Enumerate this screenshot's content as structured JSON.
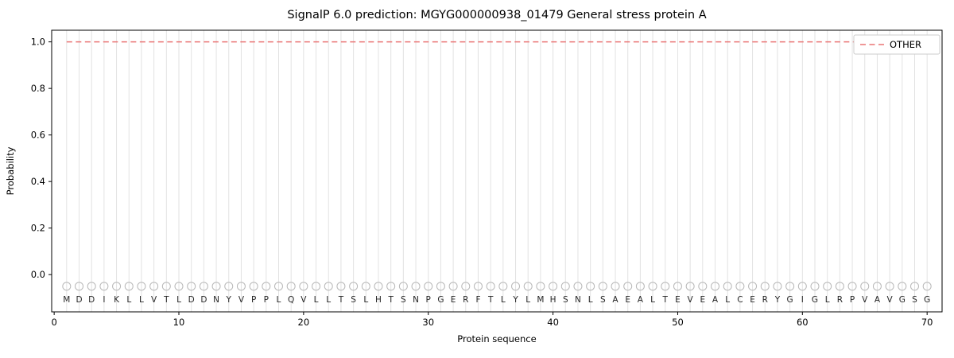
{
  "title": "SignalP 6.0 prediction: MGYG000000938_01479 General stress protein A",
  "chart_data": {
    "type": "line",
    "title": "SignalP 6.0 prediction: MGYG000000938_01479 General stress protein A",
    "xlabel": "Protein sequence",
    "ylabel": "Probability",
    "xlim": [
      -0.2,
      71.2
    ],
    "ylim": [
      -0.16,
      1.05
    ],
    "x_ticks": [
      0,
      10,
      20,
      30,
      40,
      50,
      60,
      70
    ],
    "y_ticks": [
      0.0,
      0.2,
      0.4,
      0.6,
      0.8,
      1.0
    ],
    "grid": "vertical-per-residue",
    "grid_color": "#e2e2e2",
    "legend_position": "upper right",
    "series": [
      {
        "name": "OTHER",
        "style": "dashed",
        "color": "#ea7575",
        "x": [
          1,
          2,
          3,
          4,
          5,
          6,
          7,
          8,
          9,
          10,
          11,
          12,
          13,
          14,
          15,
          16,
          17,
          18,
          19,
          20,
          21,
          22,
          23,
          24,
          25,
          26,
          27,
          28,
          29,
          30,
          31,
          32,
          33,
          34,
          35,
          36,
          37,
          38,
          39,
          40,
          41,
          42,
          43,
          44,
          45,
          46,
          47,
          48,
          49,
          50,
          51,
          52,
          53,
          54,
          55,
          56,
          57,
          58,
          59,
          60,
          61,
          62,
          63,
          64,
          65,
          66,
          67,
          68,
          69,
          70
        ],
        "values": [
          1.0,
          1.0,
          1.0,
          1.0,
          1.0,
          1.0,
          1.0,
          1.0,
          1.0,
          1.0,
          1.0,
          1.0,
          1.0,
          1.0,
          1.0,
          1.0,
          1.0,
          1.0,
          1.0,
          1.0,
          1.0,
          1.0,
          1.0,
          1.0,
          1.0,
          1.0,
          1.0,
          1.0,
          1.0,
          1.0,
          1.0,
          1.0,
          1.0,
          1.0,
          1.0,
          1.0,
          1.0,
          1.0,
          1.0,
          1.0,
          1.0,
          1.0,
          1.0,
          1.0,
          1.0,
          1.0,
          1.0,
          1.0,
          1.0,
          1.0,
          1.0,
          1.0,
          1.0,
          1.0,
          1.0,
          1.0,
          1.0,
          1.0,
          1.0,
          1.0,
          1.0,
          1.0,
          1.0,
          1.0,
          1.0,
          1.0,
          1.0,
          1.0,
          1.0,
          1.0
        ]
      }
    ],
    "sequence": [
      "M",
      "D",
      "D",
      "I",
      "K",
      "L",
      "L",
      "V",
      "T",
      "L",
      "D",
      "D",
      "N",
      "Y",
      "V",
      "P",
      "P",
      "L",
      "Q",
      "V",
      "L",
      "L",
      "T",
      "S",
      "L",
      "H",
      "T",
      "S",
      "N",
      "P",
      "G",
      "E",
      "R",
      "F",
      "T",
      "L",
      "Y",
      "L",
      "M",
      "H",
      "S",
      "N",
      "L",
      "S",
      "A",
      "E",
      "A",
      "L",
      "T",
      "E",
      "V",
      "E",
      "A",
      "L",
      "C",
      "E",
      "R",
      "Y",
      "G",
      "I",
      "G",
      "L",
      "R",
      "P",
      "V",
      "A",
      "V",
      "G",
      "S",
      "G"
    ],
    "sequence_marker": {
      "shape": "open-circle",
      "y": -0.05,
      "color": "#b8b8b8"
    },
    "sequence_letters_y": -0.105
  },
  "legend": {
    "entries": [
      {
        "label": "OTHER",
        "color": "#ea7575",
        "style": "dashed"
      }
    ]
  }
}
